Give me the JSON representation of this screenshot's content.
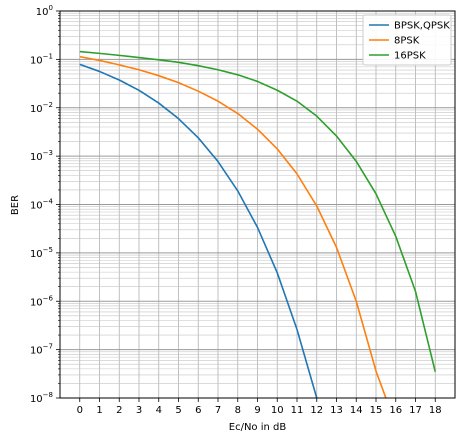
{
  "chart_data": {
    "type": "line",
    "xlabel": "Ec/No in dB",
    "ylabel": "BER",
    "xlim": [
      -1,
      19
    ],
    "ylim": [
      1e-08,
      1
    ],
    "yscale": "log",
    "grid": "on (major and minor)",
    "legend_position": "top-right",
    "x_ticks": [
      0,
      1,
      2,
      3,
      4,
      5,
      6,
      7,
      8,
      9,
      10,
      11,
      12,
      13,
      14,
      15,
      16,
      17,
      18
    ],
    "y_ticks": [
      {
        "value": 1,
        "base": "10",
        "exp": "0"
      },
      {
        "value": 0.1,
        "base": "10",
        "exp": "−1"
      },
      {
        "value": 0.01,
        "base": "10",
        "exp": "−2"
      },
      {
        "value": 0.001,
        "base": "10",
        "exp": "−3"
      },
      {
        "value": 0.0001,
        "base": "10",
        "exp": "−4"
      },
      {
        "value": 1e-05,
        "base": "10",
        "exp": "−5"
      },
      {
        "value": 1e-06,
        "base": "10",
        "exp": "−6"
      },
      {
        "value": 1e-07,
        "base": "10",
        "exp": "−7"
      },
      {
        "value": 1e-08,
        "base": "10",
        "exp": "−8"
      }
    ],
    "series": [
      {
        "name": "BPSK,QPSK",
        "color": "#1f77b4",
        "x": [
          0,
          1,
          2,
          3,
          4,
          5,
          6,
          7,
          8,
          9,
          10,
          11,
          12
        ],
        "y": [
          0.0786,
          0.0563,
          0.0375,
          0.0229,
          0.0125,
          0.00595,
          0.00239,
          0.000773,
          0.000191,
          3.36e-05,
          3.87e-06,
          2.61e-07,
          9e-09
        ]
      },
      {
        "name": "8PSK",
        "color": "#ff7f0e",
        "x": [
          0,
          1,
          2,
          3,
          4,
          5,
          6,
          7,
          8,
          9,
          10,
          11,
          12,
          13,
          14,
          15,
          15.5
        ],
        "y": [
          0.114,
          0.095,
          0.077,
          0.061,
          0.046,
          0.033,
          0.022,
          0.0137,
          0.0076,
          0.0036,
          0.00141,
          0.00043,
          9.3e-05,
          1.3e-05,
          1e-06,
          3.6e-08,
          1e-08
        ]
      },
      {
        "name": "16PSK",
        "color": "#2ca02c",
        "x": [
          0,
          1,
          2,
          3,
          4,
          5,
          6,
          7,
          8,
          9,
          10,
          11,
          12,
          13,
          14,
          15,
          16,
          17,
          18
        ],
        "y": [
          0.145,
          0.133,
          0.121,
          0.109,
          0.098,
          0.087,
          0.074,
          0.061,
          0.048,
          0.035,
          0.023,
          0.0137,
          0.0067,
          0.0026,
          0.00078,
          0.000166,
          2.2e-05,
          1.6e-06,
          3.5e-08
        ]
      }
    ]
  }
}
